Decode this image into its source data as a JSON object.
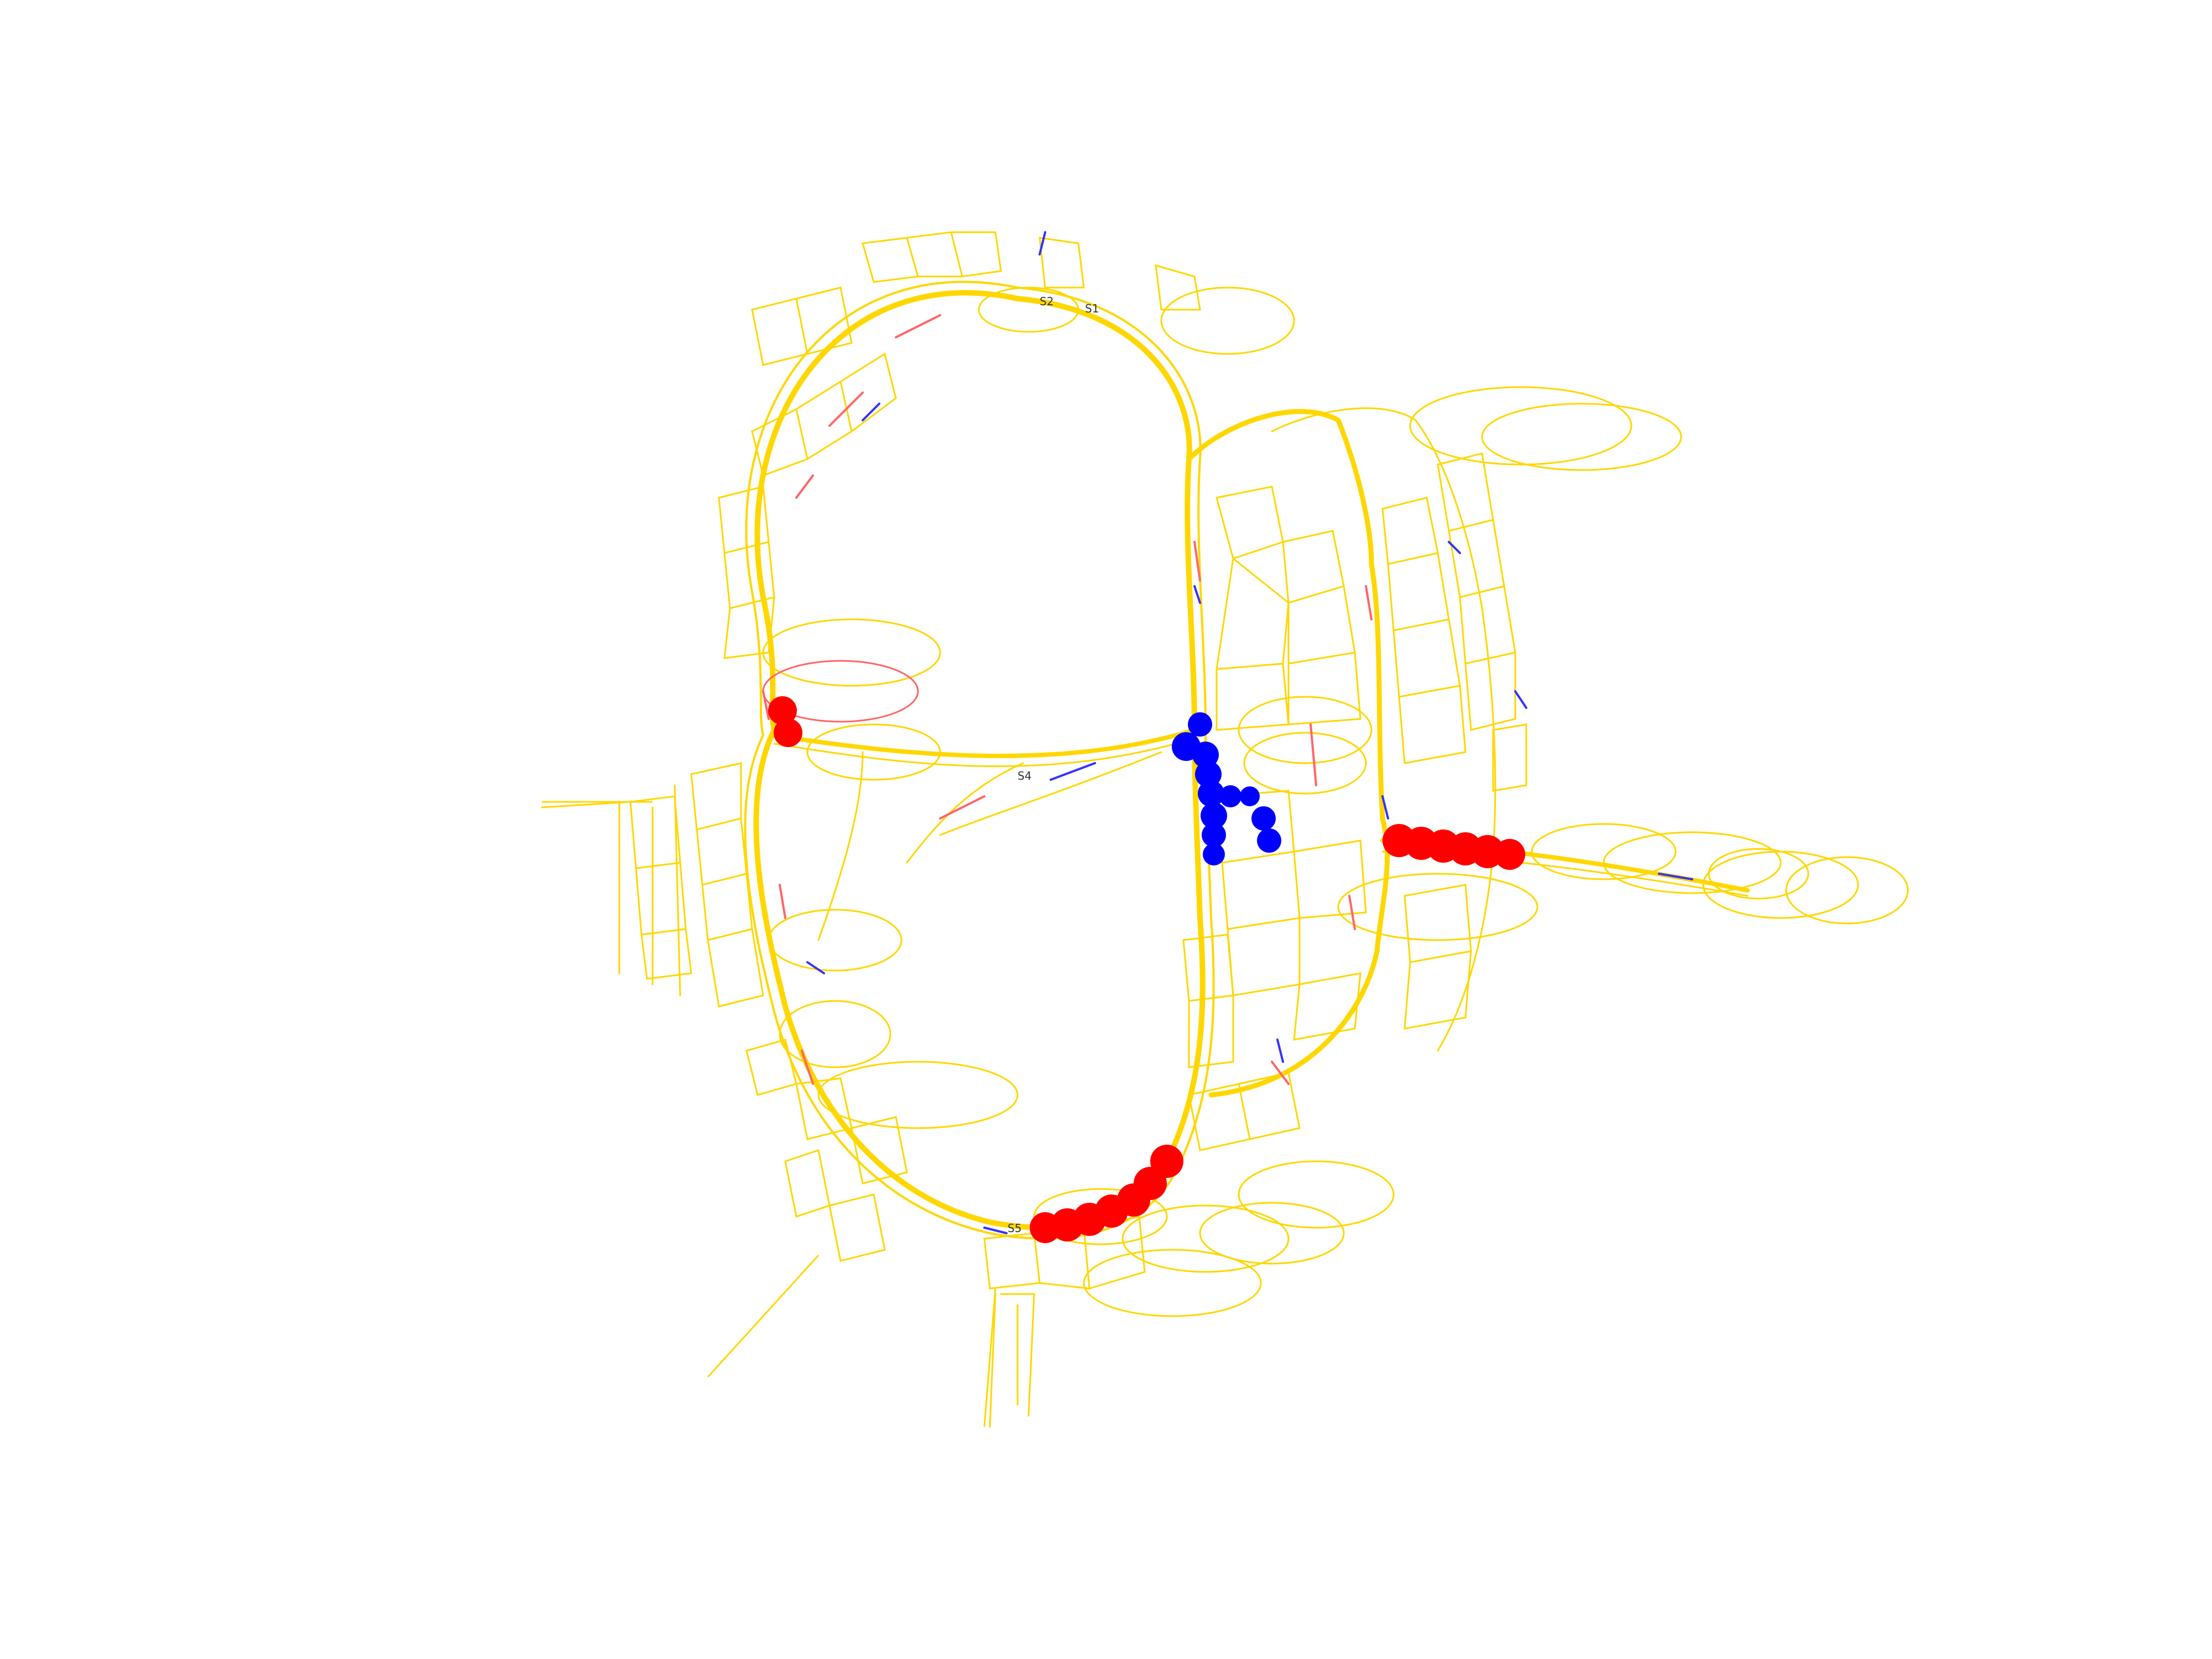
{
  "graph": {
    "colors": {
      "edge": "#FFD700",
      "edge_red": "#FF6666",
      "edge_blue": "#3333FF",
      "red_marker": "#FF0000",
      "blue_marker": "#0000FF",
      "label": "#333333",
      "background": "#FFFFFF"
    },
    "labels": [
      {
        "id": "S1",
        "text": "S1"
      },
      {
        "id": "S2",
        "text": "S2"
      },
      {
        "id": "S4",
        "text": "S4"
      },
      {
        "id": "S5",
        "text": "S5"
      }
    ],
    "marker_groups": [
      {
        "id": "red-left",
        "color": "red"
      },
      {
        "id": "red-right",
        "color": "red"
      },
      {
        "id": "red-bottom",
        "color": "red"
      },
      {
        "id": "blue-center",
        "color": "blue"
      }
    ]
  }
}
